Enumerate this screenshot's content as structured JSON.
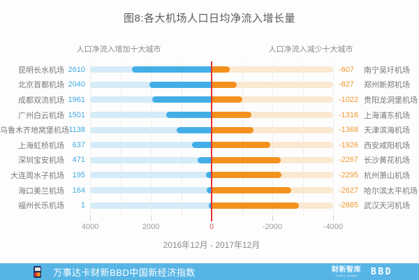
{
  "title": "图8:各大机场人口日均净流入增长量",
  "chart_data": {
    "type": "bar",
    "subtype": "mirrored-horizontal-tornado",
    "title": "图8:各大机场人口日均净流入增长量",
    "left_header": "人口净流入增加十大城市",
    "right_header": "人口净流入减少十大城市",
    "axis_ticks": [
      "4000",
      "2000",
      "0",
      "-2000",
      "-4000"
    ],
    "xlim_left": 4000,
    "xlim_right": -4000,
    "grid": "faint vertical lines every 1000",
    "period_label": "2016年12月 - 2017年12月",
    "increase_series": {
      "name": "人口净流入增加十大城市",
      "points": [
        {
          "airport": "昆明长水机场",
          "value": 2610
        },
        {
          "airport": "北京首都机场",
          "value": 2040
        },
        {
          "airport": "成都双流机场",
          "value": 1961
        },
        {
          "airport": "广州白云机场",
          "value": 1501
        },
        {
          "airport": "乌鲁木齐地窝堡机场",
          "value": 1138
        },
        {
          "airport": "上海虹桥机场",
          "value": 637
        },
        {
          "airport": "深圳宝安机场",
          "value": 471
        },
        {
          "airport": "大连周水子机场",
          "value": 195
        },
        {
          "airport": "海口美兰机场",
          "value": 164
        },
        {
          "airport": "福州长乐机场",
          "value": 1
        }
      ]
    },
    "decrease_series": {
      "name": "人口净流入减少十大城市",
      "points": [
        {
          "airport": "南宁吴圩机场",
          "value": -607
        },
        {
          "airport": "郑州新郑机场",
          "value": -827
        },
        {
          "airport": "贵阳龙洞堡机场",
          "value": -1022
        },
        {
          "airport": "上海浦东机场",
          "value": -1316
        },
        {
          "airport": "天津滨海机场",
          "value": -1368
        },
        {
          "airport": "西安咸阳机场",
          "value": -1926
        },
        {
          "airport": "长沙黄花机场",
          "value": -2267
        },
        {
          "airport": "杭州萧山机场",
          "value": -2295
        },
        {
          "airport": "哈尔滨太平机场",
          "value": -2627
        },
        {
          "airport": "武汉天河机场",
          "value": -2885
        }
      ]
    }
  },
  "colors": {
    "bar_increase": "#43aee6",
    "track_increase": "#d5ebf8",
    "bar_decrease": "#f3911f",
    "track_decrease": "#fae8d0",
    "zero_line": "#e8302a",
    "value_increase_text": "#3fa9e1",
    "value_decrease_text": "#f0982e",
    "footer_background": "#57b5e6"
  },
  "footer": {
    "text": "万事达卡财新BBD中国新经济指数",
    "logo_mastercard": "mastercard-card-logo",
    "logo_caixin_main": "财新智库",
    "logo_caixin_sub": "Caixin Insight",
    "logo_bbd": "BBD"
  }
}
